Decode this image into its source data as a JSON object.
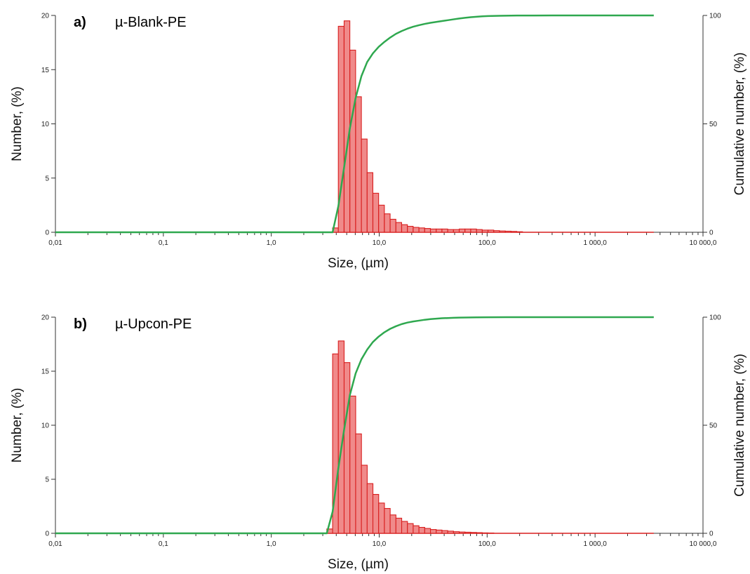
{
  "colors": {
    "bar_fill": "#f08a8a",
    "bar_stroke": "#d81e1e",
    "cumulative_line": "#2fa84f",
    "axis": "#333333"
  },
  "chart_data": [
    {
      "type": "bar",
      "panel": "a)",
      "title": "µ-Blank-PE",
      "xlabel": "Size, (µm)",
      "ylabel": "Number, (%)",
      "y2label": "Cumulative number, (%)",
      "x_scale": "log",
      "xlim": [
        0.01,
        10000
      ],
      "ylim": [
        0,
        20
      ],
      "y2lim": [
        0,
        100
      ],
      "x_ticks": [
        "0,01",
        "0,1",
        "1,0",
        "10,0",
        "100,0",
        "1 000,0",
        "10 000,0"
      ],
      "y_ticks": [
        "0",
        "5",
        "10",
        "15",
        "20"
      ],
      "y2_ticks": [
        "0",
        "50",
        "100"
      ],
      "series": [
        {
          "type": "bar",
          "x": [
            3.7,
            4.18,
            4.73,
            5.35,
            6.05,
            6.84,
            7.73,
            8.74,
            9.88,
            11.17,
            12.63,
            14.28,
            16.15,
            18.26,
            20.64,
            23.34,
            26.39,
            29.84,
            33.74,
            38.15,
            43.13,
            48.77,
            55.14,
            62.35,
            70.5,
            79.71,
            90.13,
            101.9,
            115.2,
            130.3,
            147.3,
            166.6,
            188.3
          ],
          "values": [
            0.4,
            19.0,
            19.5,
            16.8,
            12.5,
            8.6,
            5.5,
            3.6,
            2.5,
            1.7,
            1.2,
            0.9,
            0.7,
            0.55,
            0.45,
            0.4,
            0.35,
            0.3,
            0.3,
            0.3,
            0.25,
            0.25,
            0.3,
            0.3,
            0.3,
            0.25,
            0.2,
            0.2,
            0.15,
            0.12,
            0.1,
            0.08,
            0.05
          ]
        },
        {
          "type": "line",
          "axis": "right",
          "x": [
            0.01,
            3.7,
            4.18,
            4.73,
            5.35,
            6.05,
            6.84,
            7.73,
            8.74,
            9.88,
            11.17,
            12.63,
            14.28,
            16.15,
            18.26,
            20.64,
            23.34,
            26.39,
            29.84,
            33.74,
            38.15,
            43.13,
            48.77,
            55.14,
            62.35,
            70.5,
            79.71,
            90.13,
            101.9,
            130.3,
            188.3,
            400,
            1000,
            3500
          ],
          "values": [
            0,
            0,
            12.0,
            30.0,
            48.0,
            62.0,
            72.0,
            78.5,
            82.5,
            85.5,
            87.8,
            89.8,
            91.5,
            92.8,
            93.9,
            94.8,
            95.5,
            96.1,
            96.6,
            97.0,
            97.4,
            97.8,
            98.2,
            98.6,
            98.9,
            99.2,
            99.4,
            99.6,
            99.7,
            99.85,
            99.95,
            100,
            100,
            100
          ]
        }
      ]
    },
    {
      "type": "bar",
      "panel": "b)",
      "title": "µ-Upcon-PE",
      "xlabel": "Size, (µm)",
      "ylabel": "Number, (%)",
      "y2label": "Cumulative number, (%)",
      "x_scale": "log",
      "xlim": [
        0.01,
        10000
      ],
      "ylim": [
        0,
        20
      ],
      "y2lim": [
        0,
        100
      ],
      "x_ticks": [
        "0,01",
        "0,1",
        "1,0",
        "10,0",
        "100,0",
        "1 000,0",
        "10 000,0"
      ],
      "y_ticks": [
        "0",
        "5",
        "10",
        "15",
        "20"
      ],
      "y2_ticks": [
        "0",
        "50",
        "100"
      ],
      "series": [
        {
          "type": "bar",
          "x": [
            3.27,
            3.7,
            4.18,
            4.73,
            5.35,
            6.05,
            6.84,
            7.73,
            8.74,
            9.88,
            11.17,
            12.63,
            14.28,
            16.15,
            18.26,
            20.64,
            23.34,
            26.39,
            29.84,
            33.74,
            38.15,
            43.13,
            48.77,
            55.14,
            62.35,
            70.5,
            79.71,
            90.13,
            101.9
          ],
          "values": [
            0.4,
            16.6,
            17.8,
            15.8,
            12.7,
            9.2,
            6.3,
            4.6,
            3.6,
            2.8,
            2.3,
            1.7,
            1.4,
            1.1,
            0.9,
            0.7,
            0.55,
            0.45,
            0.35,
            0.3,
            0.25,
            0.2,
            0.15,
            0.12,
            0.1,
            0.08,
            0.06,
            0.04,
            0.03
          ]
        },
        {
          "type": "line",
          "axis": "right",
          "x": [
            0.01,
            3.27,
            3.7,
            4.18,
            4.73,
            5.35,
            6.05,
            6.84,
            7.73,
            8.74,
            9.88,
            11.17,
            12.63,
            14.28,
            16.15,
            18.26,
            20.64,
            23.34,
            26.39,
            29.84,
            33.74,
            38.15,
            43.13,
            48.77,
            55.14,
            62.35,
            79.71,
            101.9,
            150,
            300,
            1000,
            3500
          ],
          "values": [
            0,
            0,
            10.0,
            30.0,
            48.0,
            64.0,
            74.0,
            80.5,
            85.0,
            88.5,
            91.0,
            93.0,
            94.6,
            95.8,
            96.8,
            97.5,
            98.0,
            98.4,
            98.8,
            99.1,
            99.3,
            99.5,
            99.6,
            99.7,
            99.8,
            99.85,
            99.9,
            99.95,
            100,
            100,
            100,
            100
          ]
        }
      ]
    }
  ]
}
